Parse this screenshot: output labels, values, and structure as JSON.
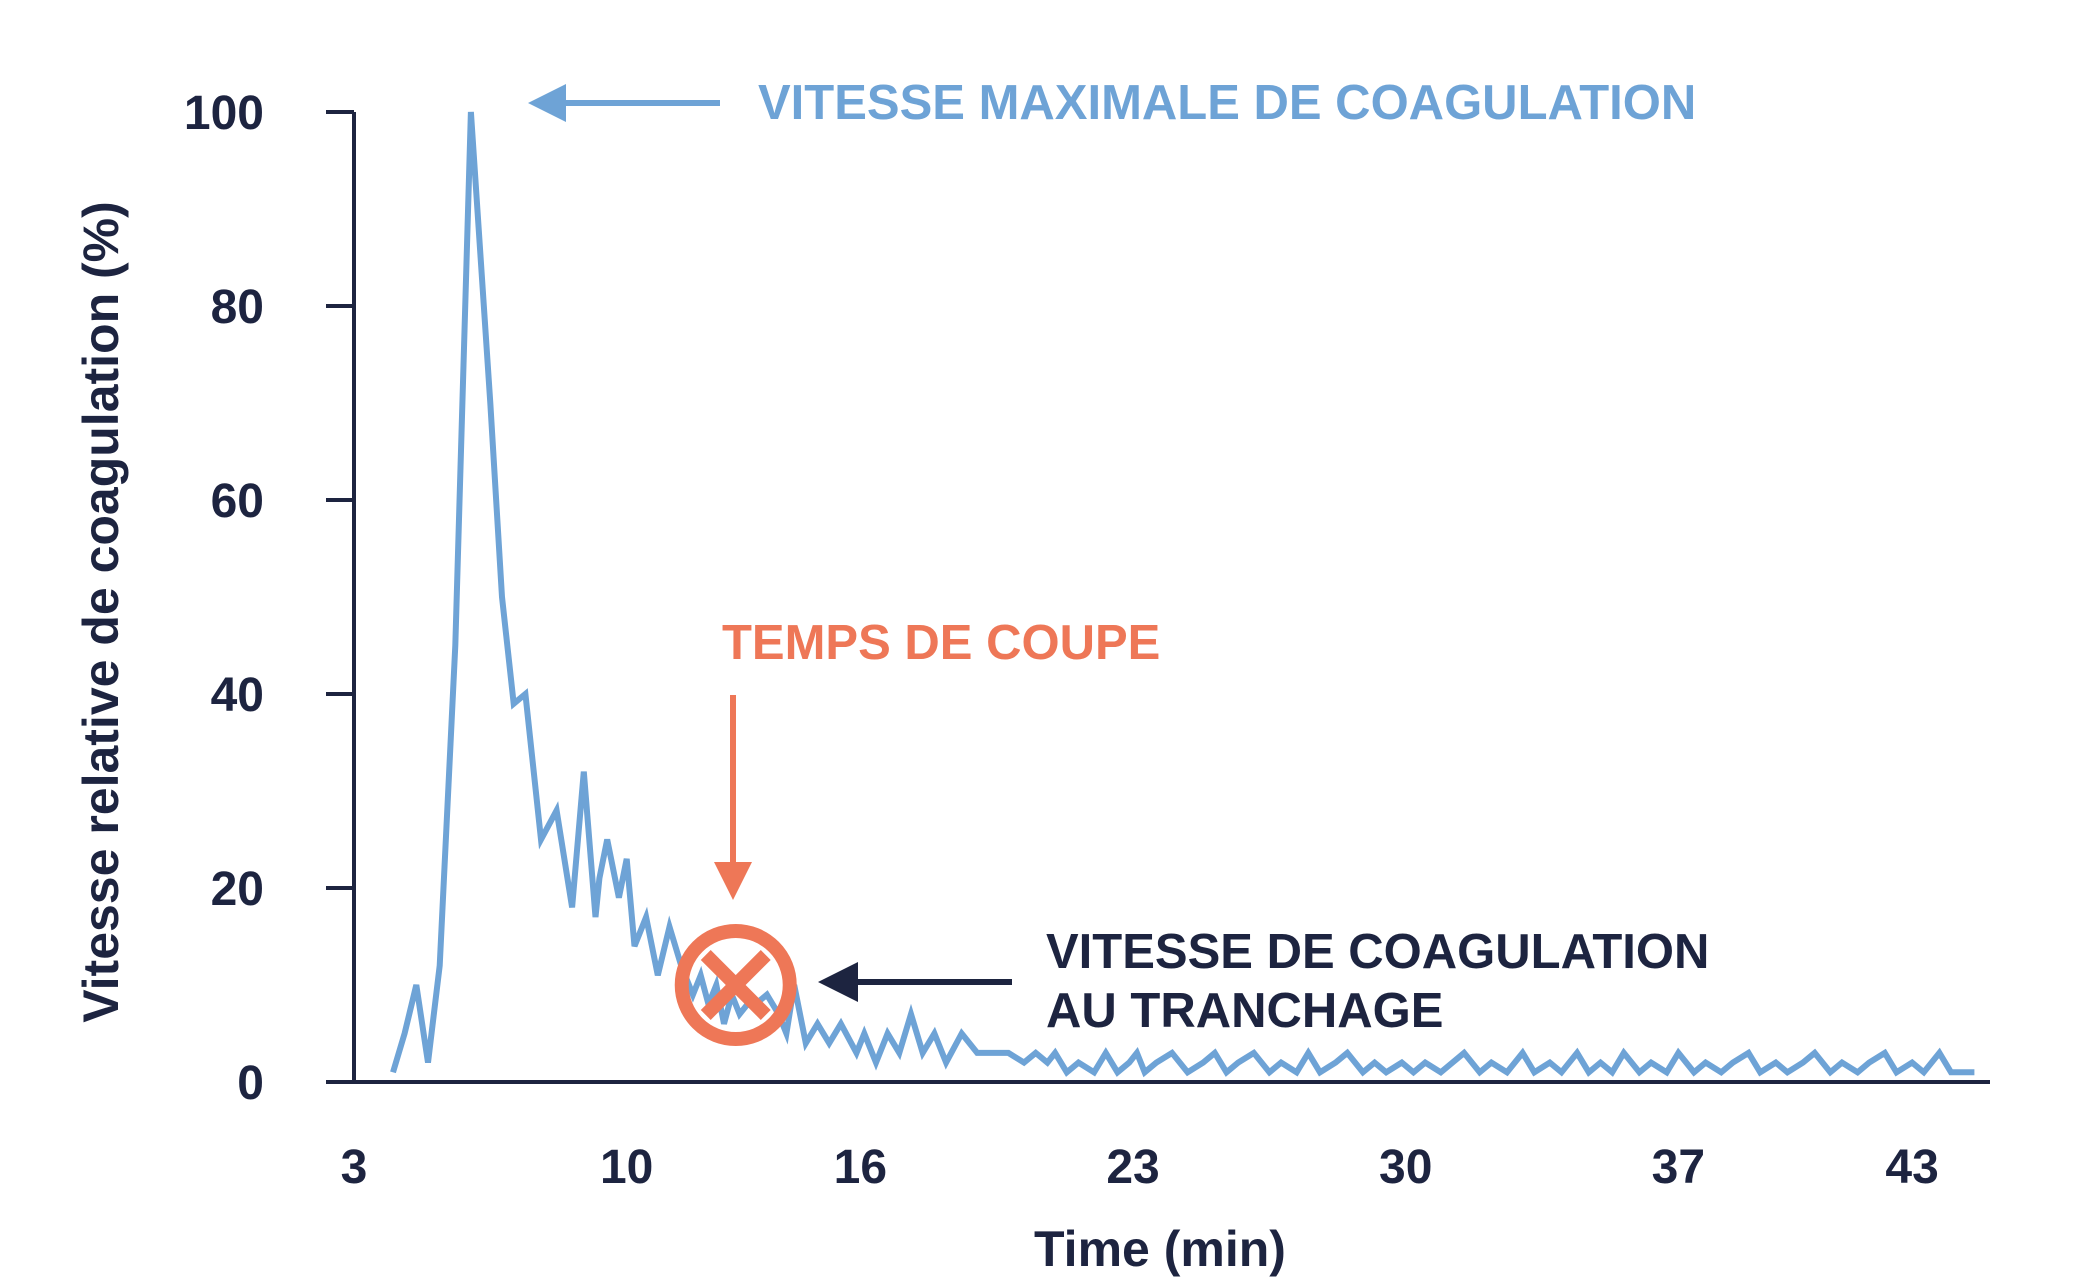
{
  "chart_data": {
    "type": "line",
    "title": "",
    "xlabel": "Time (min)",
    "ylabel": "Vitesse relative de coagulation (%)",
    "x_ticks": [
      "3",
      "10",
      "16",
      "23",
      "30",
      "37",
      "43"
    ],
    "y_ticks": [
      "0",
      "20",
      "40",
      "60",
      "80",
      "100"
    ],
    "xlim": [
      3,
      45
    ],
    "ylim": [
      0,
      100
    ],
    "grid": false,
    "series": [
      {
        "color": "#6ea3d6",
        "x": [
          4.0,
          4.3,
          4.6,
          4.9,
          5.2,
          5.6,
          6.0,
          6.5,
          6.8,
          7.1,
          7.4,
          7.8,
          8.2,
          8.6,
          8.9,
          9.2,
          9.3,
          9.5,
          9.8,
          10.0,
          10.2,
          10.5,
          10.8,
          11.1,
          11.4,
          11.7,
          11.9,
          12.1,
          12.3,
          12.5,
          12.7,
          12.9,
          13.1,
          13.3,
          13.6,
          13.9,
          14.1,
          14.3,
          14.6,
          14.9,
          15.2,
          15.5,
          15.9,
          16.1,
          16.4,
          16.7,
          17.0,
          17.3,
          17.6,
          17.9,
          18.2,
          18.6,
          19.0,
          19.4,
          19.8,
          20.2,
          20.5,
          20.8,
          21.0,
          21.3,
          21.6,
          22.0,
          22.3,
          22.6,
          22.9,
          23.1,
          23.3,
          23.6,
          24.0,
          24.4,
          24.8,
          25.1,
          25.4,
          25.7,
          26.1,
          26.5,
          26.8,
          27.2,
          27.5,
          27.8,
          28.2,
          28.5,
          28.9,
          29.2,
          29.5,
          29.9,
          30.2,
          30.5,
          30.9,
          31.2,
          31.5,
          31.9,
          32.2,
          32.6,
          33.0,
          33.3,
          33.7,
          34.0,
          34.4,
          34.7,
          35.0,
          35.3,
          35.6,
          36.0,
          36.3,
          36.7,
          37.0,
          37.4,
          37.7,
          38.1,
          38.4,
          38.8,
          39.1,
          39.5,
          39.8,
          40.2,
          40.5,
          40.9,
          41.2,
          41.6,
          41.9,
          42.3,
          42.6,
          43.0,
          43.3,
          43.7,
          44.0,
          44.3,
          44.6
        ],
        "y": [
          1,
          5,
          10,
          2,
          12,
          45,
          100,
          70,
          50,
          39,
          40,
          25,
          28,
          18,
          32,
          17,
          21,
          25,
          19,
          23,
          14,
          17,
          11,
          16,
          12,
          9,
          11,
          8,
          10,
          6,
          9,
          7,
          8,
          8,
          9,
          7,
          5,
          10,
          4,
          6,
          4,
          6,
          3,
          5,
          2,
          5,
          3,
          7,
          3,
          5,
          2,
          5,
          3,
          3,
          3,
          2,
          3,
          2,
          3,
          1,
          2,
          1,
          3,
          1,
          2,
          3,
          1,
          2,
          3,
          1,
          2,
          3,
          1,
          2,
          3,
          1,
          2,
          1,
          3,
          1,
          2,
          3,
          1,
          2,
          1,
          2,
          1,
          2,
          1,
          2,
          3,
          1,
          2,
          1,
          3,
          1,
          2,
          1,
          3,
          1,
          2,
          1,
          3,
          1,
          2,
          1,
          3,
          1,
          2,
          1,
          2,
          3,
          1,
          2,
          1,
          2,
          3,
          1,
          2,
          1,
          2,
          3,
          1,
          2,
          1,
          3,
          1,
          1,
          1
        ],
        "values_note": ""
      }
    ],
    "annotations": [
      {
        "text": "VITESSE MAXIMALE DE COAGULATION",
        "color": "#6ea3d6",
        "points_to": {
          "x": 6.0,
          "y": 100
        }
      },
      {
        "text": "TEMPS DE COUPE",
        "color": "#ee7757",
        "points_to": {
          "x": 12.8,
          "y": 10
        }
      },
      {
        "text_lines": [
          "VITESSE DE COAGULATION",
          "AU TRANCHAGE"
        ],
        "color": "#1d2440",
        "points_to": {
          "x": 12.8,
          "y": 10
        }
      }
    ],
    "marker": {
      "icon": "circle-x-icon",
      "color": "#ee7757",
      "x": 12.8,
      "y": 10
    }
  }
}
